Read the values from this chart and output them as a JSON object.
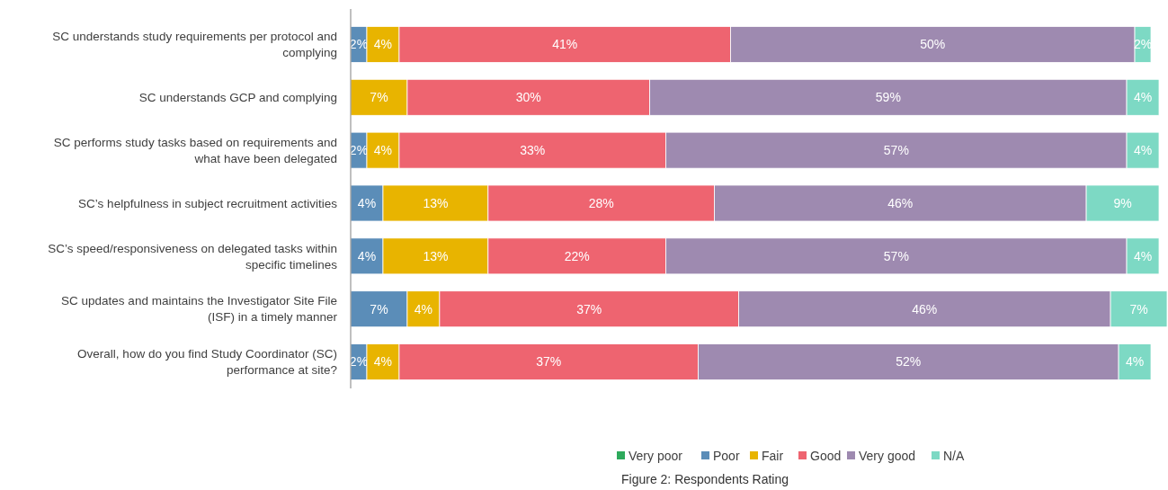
{
  "chart_data": {
    "type": "bar",
    "orientation": "horizontal",
    "stacked": true,
    "legend": "bottom",
    "categories": [
      "SC understands study requirements per protocol and complying",
      "SC understands GCP and complying",
      "SC performs study tasks based on requirements and what have been delegated",
      "SC’s helpfulness in subject recruitment activities",
      "SC’s speed/responsiveness on delegated tasks within specific timelines",
      "SC updates and maintains the Investigator Site File (ISF) in a timely manner",
      "Overall, how do you find Study Coordinator (SC) performance at site?"
    ],
    "series": [
      {
        "name": "Very poor",
        "color": "#2eaa5c",
        "values": [
          null,
          null,
          null,
          null,
          null,
          null,
          null
        ]
      },
      {
        "name": "Poor",
        "color": "#5b8db8",
        "values": [
          2,
          null,
          2,
          4,
          4,
          7,
          2
        ],
        "value_labels": [
          "2%",
          null,
          "2%",
          "4%",
          "4%",
          "7%",
          "2%"
        ]
      },
      {
        "name": "Fair",
        "color": "#e8b400",
        "values": [
          4,
          7,
          4,
          13,
          13,
          4,
          4
        ],
        "value_labels": [
          "4%",
          "7%",
          "4%",
          "13%",
          "13%",
          "4%",
          "4%"
        ]
      },
      {
        "name": "Good",
        "color": "#ee6470",
        "values": [
          41,
          30,
          33,
          28,
          22,
          37,
          37
        ],
        "value_labels": [
          "41%",
          "30%",
          "33%",
          "28%",
          "22%",
          "37%",
          "37%"
        ]
      },
      {
        "name": "Very good",
        "color": "#9e8ab0",
        "values": [
          50,
          59,
          57,
          46,
          57,
          46,
          52
        ],
        "value_labels": [
          "50%",
          "59%",
          "57%",
          "46%",
          "57%",
          "46%",
          "52%"
        ]
      },
      {
        "name": "N/A",
        "color": "#7dd9c4",
        "values": [
          2,
          4,
          4,
          9,
          4,
          7,
          4
        ],
        "value_labels": [
          "2%",
          "4%",
          "4%",
          "9%",
          "4%",
          "7%",
          "4%"
        ]
      }
    ],
    "annotations": [
      "Figure 2: Respondents Rating"
    ]
  }
}
